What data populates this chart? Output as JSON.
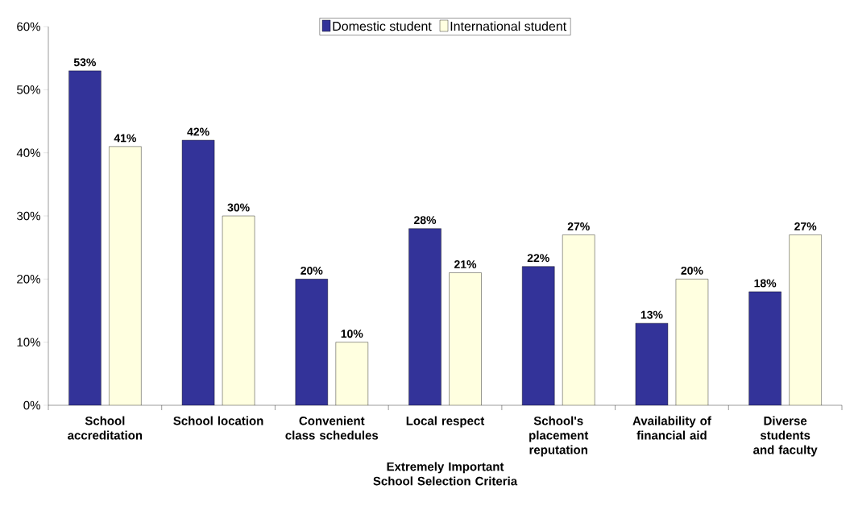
{
  "chart_data": {
    "type": "bar",
    "categories": [
      "School accreditation",
      "School location",
      "Convenient class schedules",
      "Local respect",
      "School's placement reputation",
      "Availability of financial aid",
      "Diverse students and faculty"
    ],
    "series": [
      {
        "name": "Domestic student",
        "color": "#333399",
        "values": [
          53,
          42,
          20,
          28,
          22,
          13,
          18
        ],
        "value_labels": [
          "53%",
          "42%",
          "20%",
          "28%",
          "22%",
          "13%",
          "18%"
        ]
      },
      {
        "name": "International student",
        "color": "#ffffe0",
        "values": [
          41,
          30,
          10,
          21,
          27,
          20,
          27
        ],
        "value_labels": [
          "41%",
          "30%",
          "10%",
          "21%",
          "27%",
          "20%",
          "27%"
        ]
      }
    ],
    "xlabel": "Extremely Important School Selection Criteria",
    "ylim": [
      0,
      60
    ],
    "yticks": [
      {
        "value": 0,
        "label": "0%"
      },
      {
        "value": 10,
        "label": "10%"
      },
      {
        "value": 20,
        "label": "20%"
      },
      {
        "value": 30,
        "label": "30%"
      },
      {
        "value": 40,
        "label": "40%"
      },
      {
        "value": 50,
        "label": "50%"
      },
      {
        "value": 60,
        "label": "60%"
      }
    ],
    "legend": "top"
  }
}
